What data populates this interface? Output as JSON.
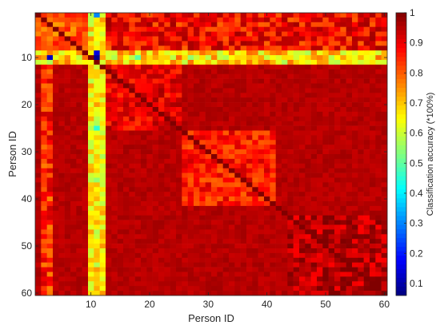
{
  "chart_data": {
    "type": "heatmap",
    "title": "",
    "xlabel": "Person ID",
    "ylabel": "Person ID",
    "colorbar_label": "Classification accuracy (*100%)",
    "colormap": "jet",
    "xlim": [
      1,
      60
    ],
    "ylim": [
      1,
      60
    ],
    "y_direction": "top-to-bottom",
    "x_ticks": [
      10,
      20,
      30,
      40,
      50,
      60
    ],
    "y_ticks": [
      10,
      20,
      30,
      40,
      50,
      60
    ],
    "clim": [
      0.06,
      1
    ],
    "colorbar_ticks": [
      0.1,
      0.2,
      0.3,
      0.4,
      0.5,
      0.6,
      0.7,
      0.8,
      0.9,
      1
    ],
    "grid": false,
    "legend": "colorbar-right",
    "matrix_size": [
      60,
      60
    ],
    "description_of_values": "pairwise classification accuracy between person IDs; mostly ~0.85-1 background, blocks at IDs 26-41, bright bands at rows 9-11 and columns 2-3, 9-12",
    "base_value": 0.97,
    "row_bands": [
      {
        "rows": [
          9,
          11
        ],
        "cols": [
          1,
          60
        ],
        "value": 0.68
      },
      {
        "rows": [
          1,
          8
        ],
        "cols": [
          1,
          60
        ],
        "value": 0.9
      }
    ],
    "col_bands": [
      {
        "cols": [
          2,
          3
        ],
        "rows": [
          1,
          60
        ],
        "value": 0.85
      },
      {
        "cols": [
          10,
          12
        ],
        "rows": [
          1,
          60
        ],
        "value": 0.66
      }
    ],
    "blocks": [
      {
        "rows": [
          1,
          8
        ],
        "cols": [
          1,
          10
        ],
        "value": 0.8
      },
      {
        "rows": [
          12,
          25
        ],
        "cols": [
          13,
          25
        ],
        "value": 0.9
      },
      {
        "rows": [
          26,
          41
        ],
        "cols": [
          26,
          41
        ],
        "value": 0.86
      },
      {
        "rows": [
          44,
          60
        ],
        "cols": [
          44,
          60
        ],
        "value": 0.95
      }
    ],
    "low_cells": [
      {
        "row": 10,
        "col": 11,
        "value": 0.08
      },
      {
        "row": 10,
        "col": 3,
        "value": 0.12
      },
      {
        "row": 9,
        "col": 11,
        "value": 0.15
      },
      {
        "row": 1,
        "col": 11,
        "value": 0.3
      },
      {
        "row": 25,
        "col": 11,
        "value": 0.45
      },
      {
        "row": 36,
        "col": 11,
        "value": 0.55
      },
      {
        "row": 10,
        "col": 27,
        "value": 0.55
      },
      {
        "row": 10,
        "col": 18,
        "value": 0.5
      }
    ]
  }
}
